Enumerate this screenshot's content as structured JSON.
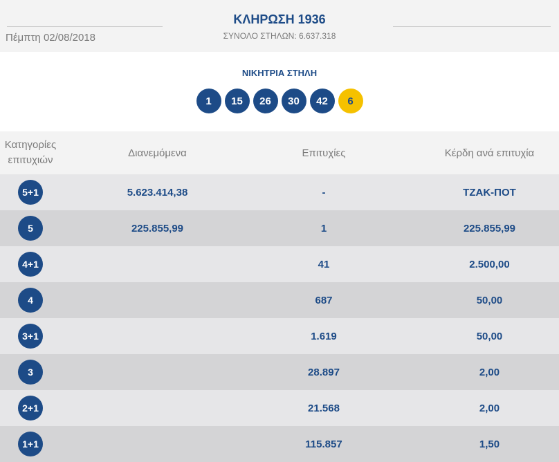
{
  "header": {
    "date": "Πέμπτη 02/08/2018",
    "title": "ΚΛΗΡΩΣΗ 1936",
    "subtitle": "ΣΥΝΟΛΟ ΣΤΗΛΩΝ: 6.637.318"
  },
  "winning": {
    "label": "ΝΙΚΗΤΡΙΑ ΣΤΗΛΗ",
    "numbers": [
      "1",
      "15",
      "26",
      "30",
      "42"
    ],
    "joker": "6"
  },
  "table": {
    "headers": {
      "category_line1": "Κατηγορίες",
      "category_line2": "επιτυχιών",
      "distributed": "Διανεμόμενα",
      "winners": "Επιτυχίες",
      "prize": "Κέρδη ανά επιτυχία"
    },
    "rows": [
      {
        "category": "5+1",
        "distributed": "5.623.414,38",
        "winners": "-",
        "prize": "ΤΖΑΚ-ΠΟΤ"
      },
      {
        "category": "5",
        "distributed": "225.855,99",
        "winners": "1",
        "prize": "225.855,99"
      },
      {
        "category": "4+1",
        "distributed": "",
        "winners": "41",
        "prize": "2.500,00"
      },
      {
        "category": "4",
        "distributed": "",
        "winners": "687",
        "prize": "50,00"
      },
      {
        "category": "3+1",
        "distributed": "",
        "winners": "1.619",
        "prize": "50,00"
      },
      {
        "category": "3",
        "distributed": "",
        "winners": "28.897",
        "prize": "2,00"
      },
      {
        "category": "2+1",
        "distributed": "",
        "winners": "21.568",
        "prize": "2,00"
      },
      {
        "category": "1+1",
        "distributed": "",
        "winners": "115.857",
        "prize": "1,50"
      }
    ]
  },
  "colors": {
    "primary": "#1d4b87",
    "joker": "#f5c100",
    "row_light": "#e6e6e8",
    "row_dark": "#d4d4d6"
  }
}
